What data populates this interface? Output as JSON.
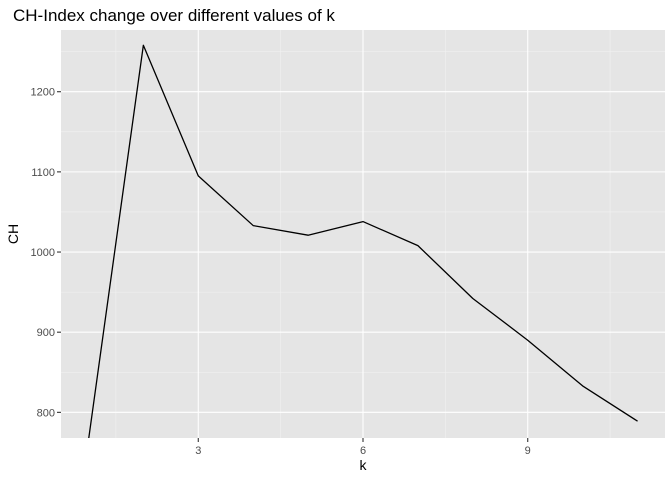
{
  "chart_data": {
    "type": "line",
    "title": "CH-Index change over different values of k",
    "xlabel": "k",
    "ylabel": "CH",
    "x": [
      1,
      2,
      3,
      4,
      5,
      6,
      7,
      8,
      9,
      10,
      11
    ],
    "series": [
      {
        "values": [
          765,
          1258,
          1095,
          1033,
          1021,
          1038,
          1008,
          942,
          890,
          833,
          789
        ]
      }
    ],
    "xlim": [
      0.5,
      11.5
    ],
    "ylim": [
      768,
      1277
    ],
    "x_ticks": [
      3,
      6,
      9
    ],
    "y_ticks": [
      800,
      900,
      1000,
      1100,
      1200
    ],
    "x_tick_labels": [
      "3",
      "6",
      "9"
    ],
    "y_tick_labels": [
      "800",
      "900",
      "1000",
      "1100",
      "1200"
    ],
    "grid": true,
    "colors": {
      "panel": "#e5e5e5",
      "grid_major": "#ffffff",
      "grid_minor": "#f2f2f2",
      "line": "#000000",
      "tick_text": "#4d4d4d"
    }
  }
}
